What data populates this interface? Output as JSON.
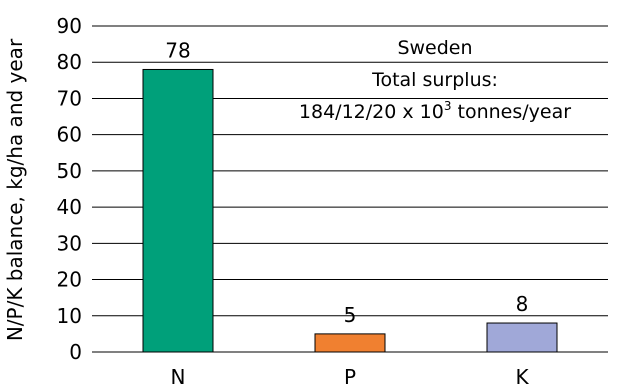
{
  "chart_data": {
    "type": "bar",
    "categories": [
      "N",
      "P",
      "K"
    ],
    "values": [
      78,
      5,
      8
    ],
    "value_labels": [
      "78",
      "5",
      "8"
    ],
    "colors": [
      "#00a07a",
      "#f08030",
      "#a0a8d8"
    ],
    "ylabel": "N/P/K balance, kg/ha and year",
    "ylim": [
      0,
      90
    ],
    "yticks": [
      0,
      10,
      20,
      30,
      40,
      50,
      60,
      70,
      80,
      90
    ],
    "grid": true,
    "annotation": {
      "line1": "Sweden",
      "line2": "Total surplus:",
      "line3_main": "184/12/20 x 10",
      "line3_sup": "3",
      "line3_tail": " tonnes/year"
    }
  }
}
